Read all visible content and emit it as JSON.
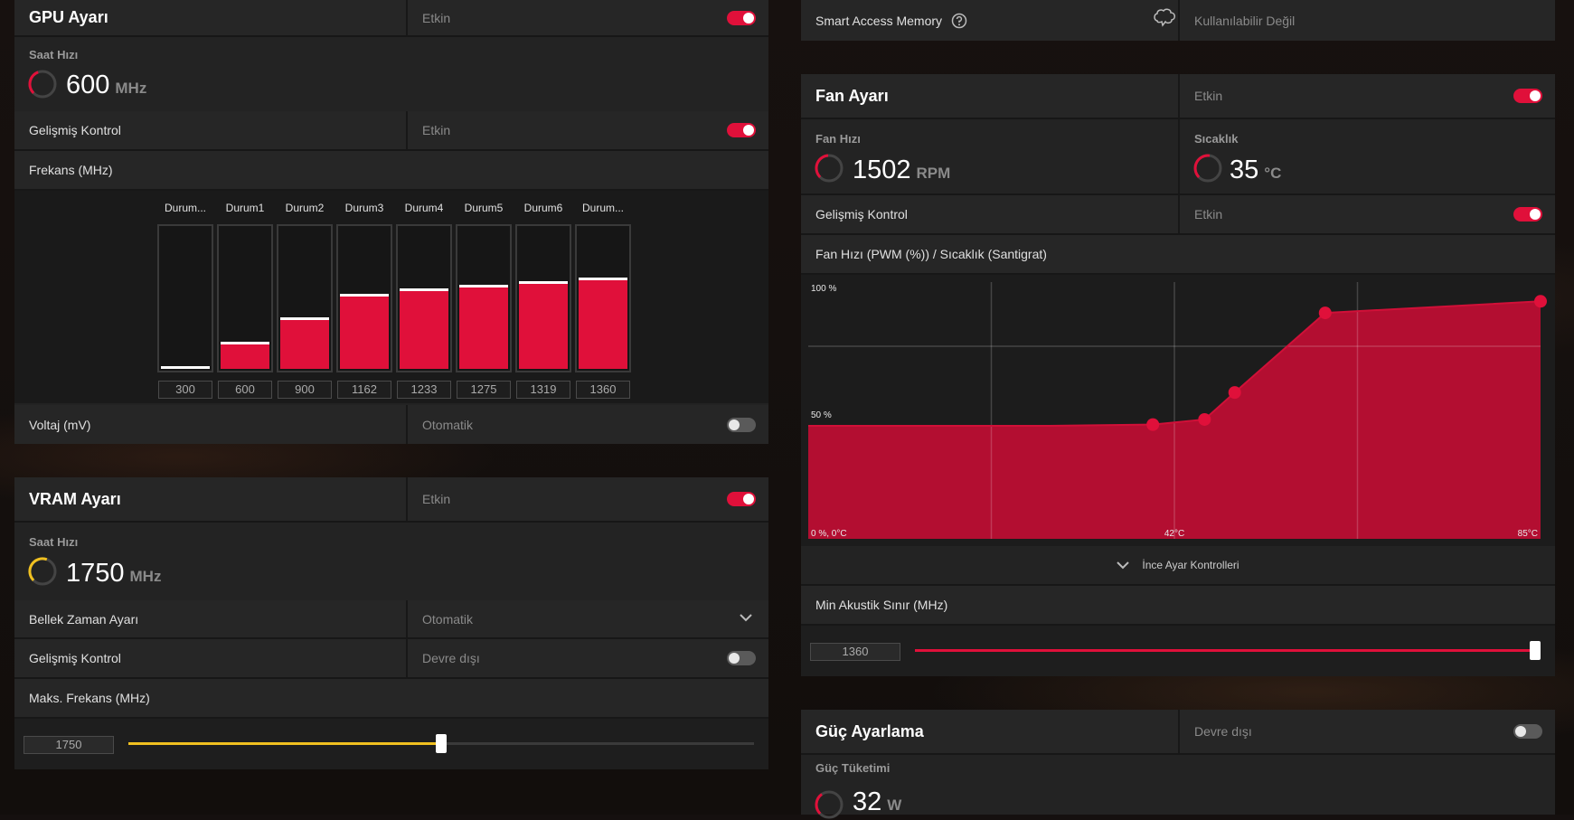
{
  "gpu": {
    "title": "GPU Ayarı",
    "status": "Etkin",
    "clock_label": "Saat Hızı",
    "clock_value": "600",
    "clock_unit": "MHz",
    "adv_label": "Gelişmiş Kontrol",
    "adv_status": "Etkin",
    "freq_label": "Frekans (MHz)",
    "voltage_label": "Voltaj (mV)",
    "voltage_status": "Otomatik",
    "states": [
      {
        "label": "Durum...",
        "value": "300",
        "level": 0.0
      },
      {
        "label": "Durum1",
        "value": "600",
        "level": 0.17
      },
      {
        "label": "Durum2",
        "value": "900",
        "level": 0.34
      },
      {
        "label": "Durum3",
        "value": "1162",
        "level": 0.5
      },
      {
        "label": "Durum4",
        "value": "1233",
        "level": 0.54
      },
      {
        "label": "Durum5",
        "value": "1275",
        "level": 0.565
      },
      {
        "label": "Durum6",
        "value": "1319",
        "level": 0.59
      },
      {
        "label": "Durum...",
        "value": "1360",
        "level": 0.615
      }
    ]
  },
  "vram": {
    "title": "VRAM Ayarı",
    "status": "Etkin",
    "clock_label": "Saat Hızı",
    "clock_value": "1750",
    "clock_unit": "MHz",
    "mem_timing_label": "Bellek Zaman Ayarı",
    "mem_timing_value": "Otomatik",
    "adv_label": "Gelişmiş Kontrol",
    "adv_status": "Devre dışı",
    "max_freq_label": "Maks. Frekans (MHz)",
    "max_freq_value": "1750",
    "max_freq_fraction": 0.5
  },
  "sam": {
    "label": "Smart Access Memory",
    "status": "Kullanılabilir Değil"
  },
  "fan": {
    "title": "Fan Ayarı",
    "status": "Etkin",
    "speed_label": "Fan Hızı",
    "speed_value": "1502",
    "speed_unit": "RPM",
    "temp_label": "Sıcaklık",
    "temp_value": "35",
    "temp_unit": "°C",
    "adv_label": "Gelişmiş Kontrol",
    "adv_status": "Etkin",
    "curve_label": "Fan Hızı (PWM (%)) / Sıcaklık (Santigrat)",
    "fine_tune_label": "İnce Ayar Kontrolleri",
    "min_acoustic_label": "Min Akustik Sınır (MHz)",
    "min_acoustic_value": "1360",
    "min_acoustic_fraction": 1.0
  },
  "power": {
    "title": "Güç Ayarlama",
    "status": "Devre dışı",
    "consumption_label": "Güç Tüketimi",
    "consumption_value": "32",
    "consumption_unit": "W"
  },
  "chart_data": {
    "type": "area",
    "x": [
      0,
      28,
      40,
      46,
      49.5,
      60,
      85
    ],
    "values": [
      44,
      44,
      44.5,
      46.5,
      57,
      88,
      92.5
    ],
    "x_min_label": "0 %, 0°C",
    "x_mid_label": "42°C",
    "x_max_label": "85°C",
    "y_top_label": "100 %",
    "y_mid_label": "50 %",
    "xlim": [
      0,
      85
    ],
    "ylim": [
      0,
      100
    ],
    "grid": true,
    "color": "#c40d34"
  },
  "colors": {
    "accent": "#e0103a",
    "vram_accent": "#f0c020"
  }
}
